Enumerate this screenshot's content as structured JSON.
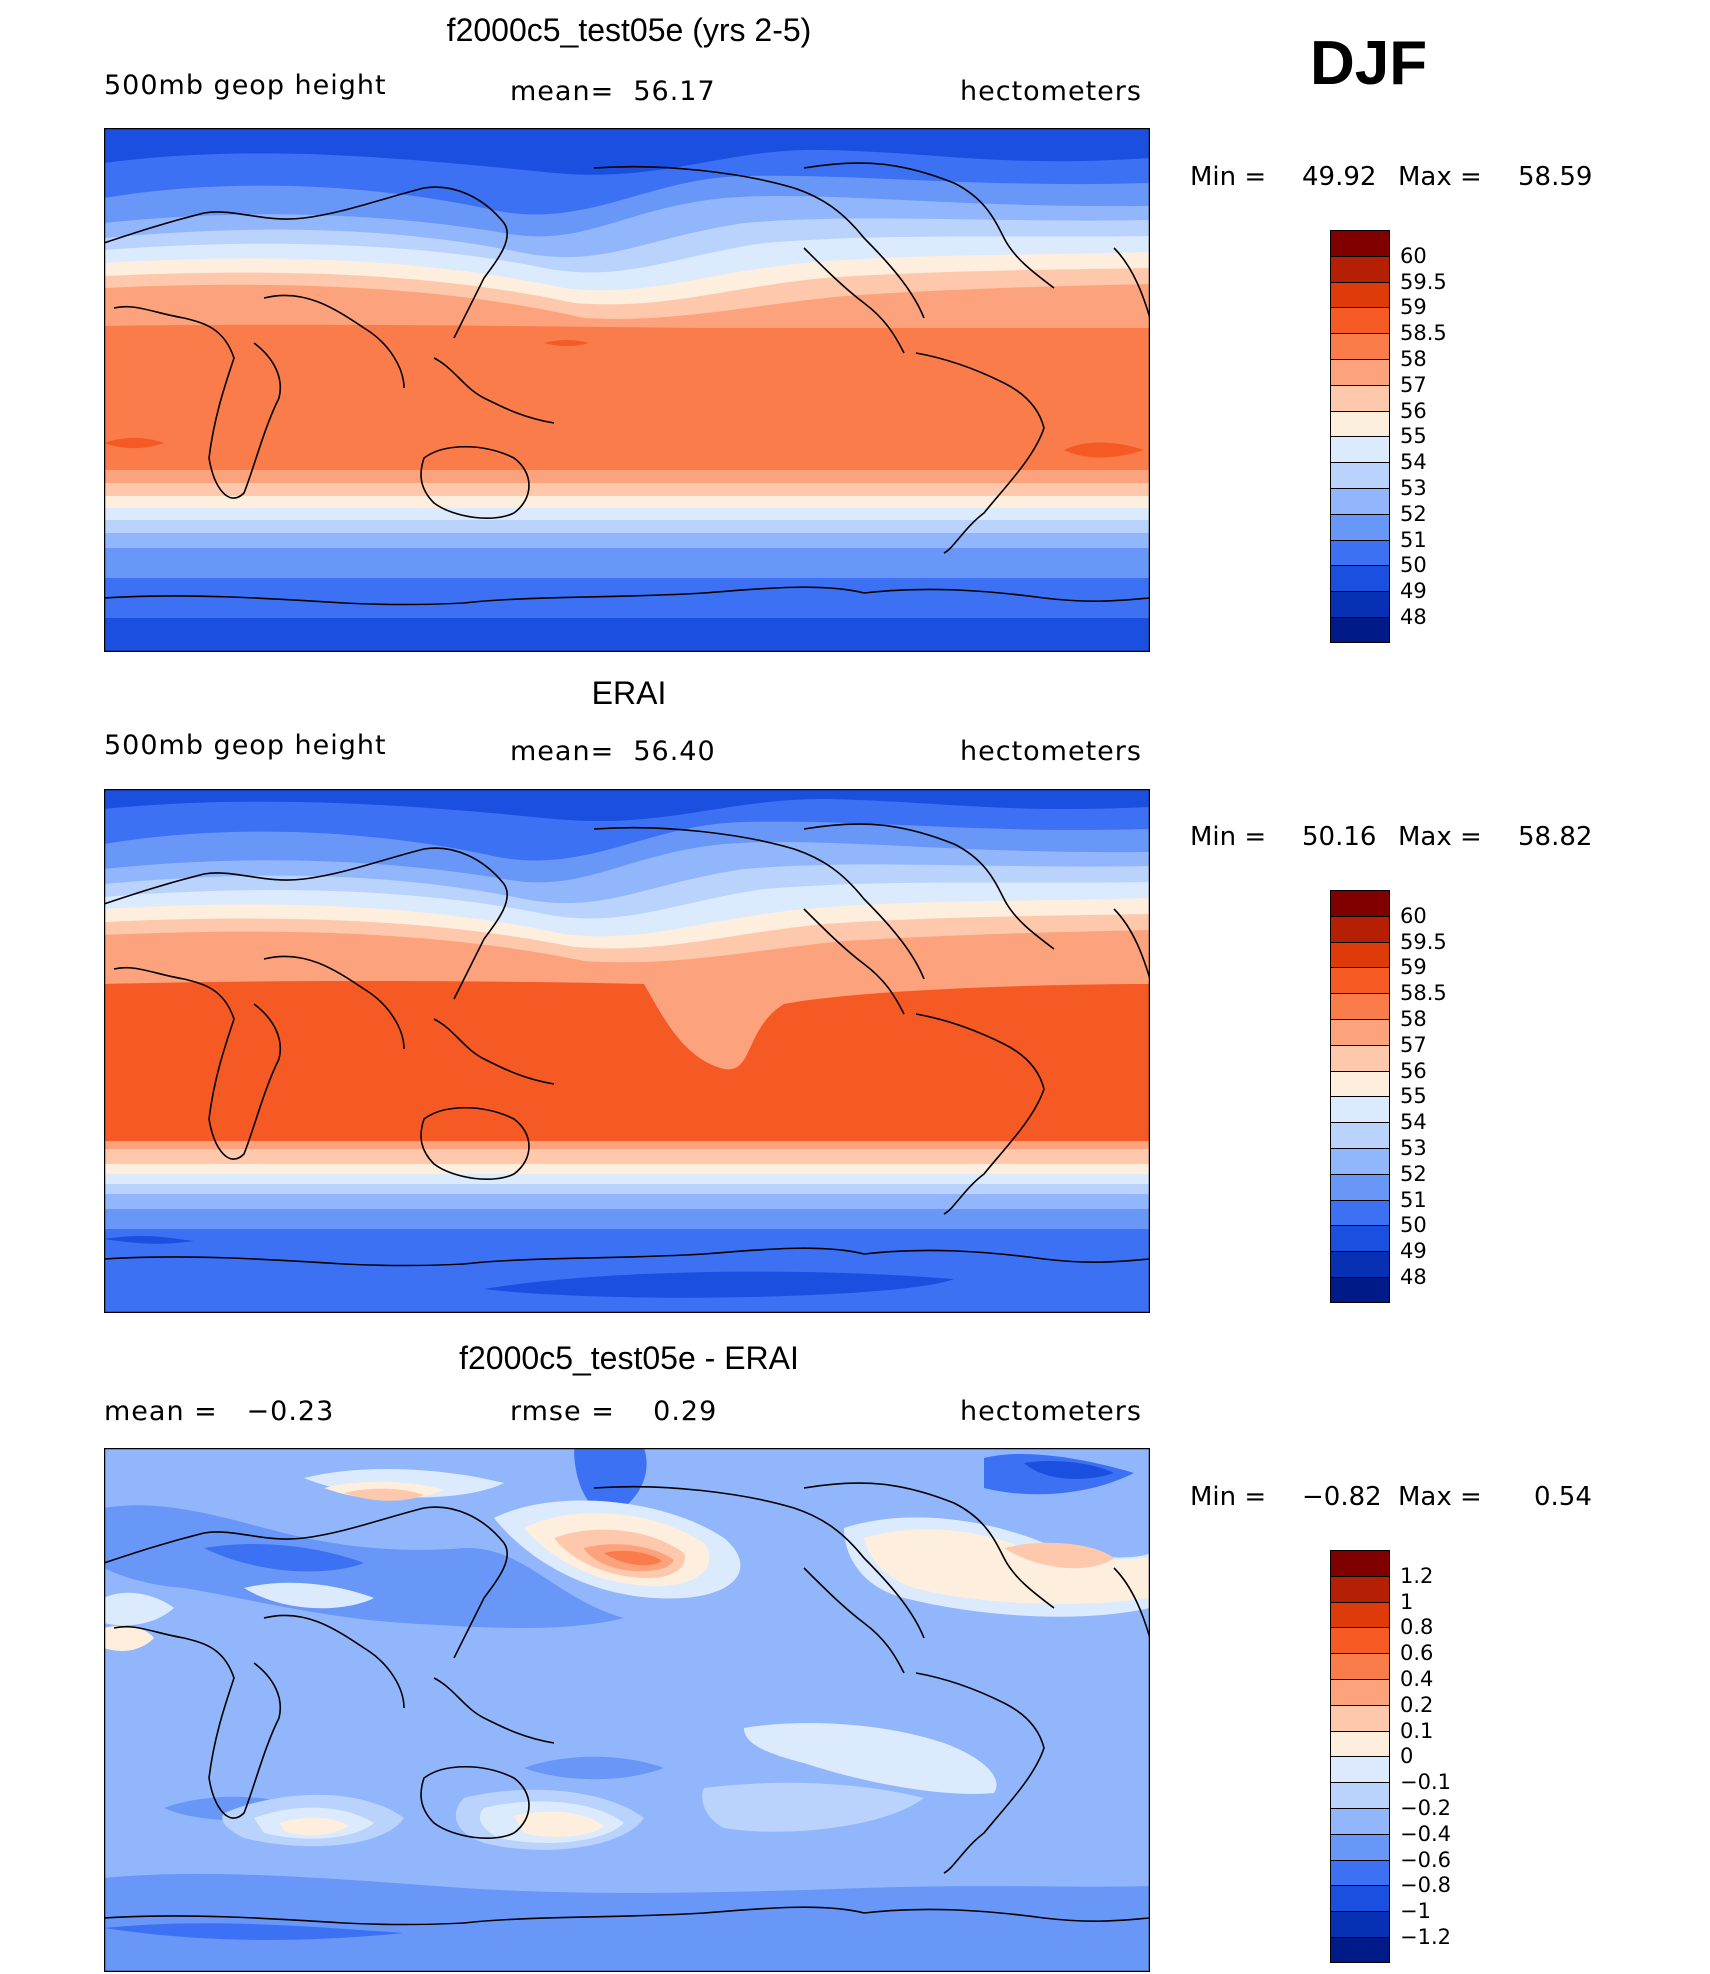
{
  "season": "DJF",
  "coastline_color": "#000000",
  "panels": [
    {
      "id": "model",
      "title": "f2000c5_test05e (yrs 2-5)",
      "left_label": "500mb geop height",
      "center_label": "mean=  56.17",
      "right_label": "hectometers",
      "min_label": "Min =",
      "min_value": "49.92",
      "max_label": "Max =",
      "max_value": "58.59",
      "colorbar": [
        "60",
        "59.5",
        "59",
        "58.5",
        "58",
        "57",
        "56",
        "55",
        "54",
        "53",
        "52",
        "51",
        "50",
        "49",
        "48"
      ]
    },
    {
      "id": "obs",
      "title": "ERAI",
      "left_label": "500mb geop height",
      "center_label": "mean=  56.40",
      "right_label": "hectometers",
      "min_label": "Min =",
      "min_value": "50.16",
      "max_label": "Max =",
      "max_value": "58.82",
      "colorbar": [
        "60",
        "59.5",
        "59",
        "58.5",
        "58",
        "57",
        "56",
        "55",
        "54",
        "53",
        "52",
        "51",
        "50",
        "49",
        "48"
      ]
    },
    {
      "id": "diff",
      "title": "f2000c5_test05e - ERAI",
      "left_label": "mean =   −0.23",
      "center_label": "rmse =    0.29",
      "right_label": "hectometers",
      "min_label": "Min =",
      "min_value": "−0.82",
      "max_label": "Max =",
      "max_value": "0.54",
      "colorbar": [
        "1.2",
        "1",
        "0.8",
        "0.6",
        "0.4",
        "0.2",
        "0.1",
        "0",
        "−0.1",
        "−0.2",
        "−0.4",
        "−0.6",
        "−0.8",
        "−1",
        "−1.2"
      ]
    }
  ],
  "palette": [
    "#800000",
    "#b52004",
    "#de3a0a",
    "#f55a24",
    "#f97c4a",
    "#fca27c",
    "#fdc8ac",
    "#feeede",
    "#dbeafd",
    "#b9d3fc",
    "#92b6fb",
    "#6997f8",
    "#3d71f4",
    "#1a4fe0",
    "#0830b5",
    "#001a88"
  ]
}
